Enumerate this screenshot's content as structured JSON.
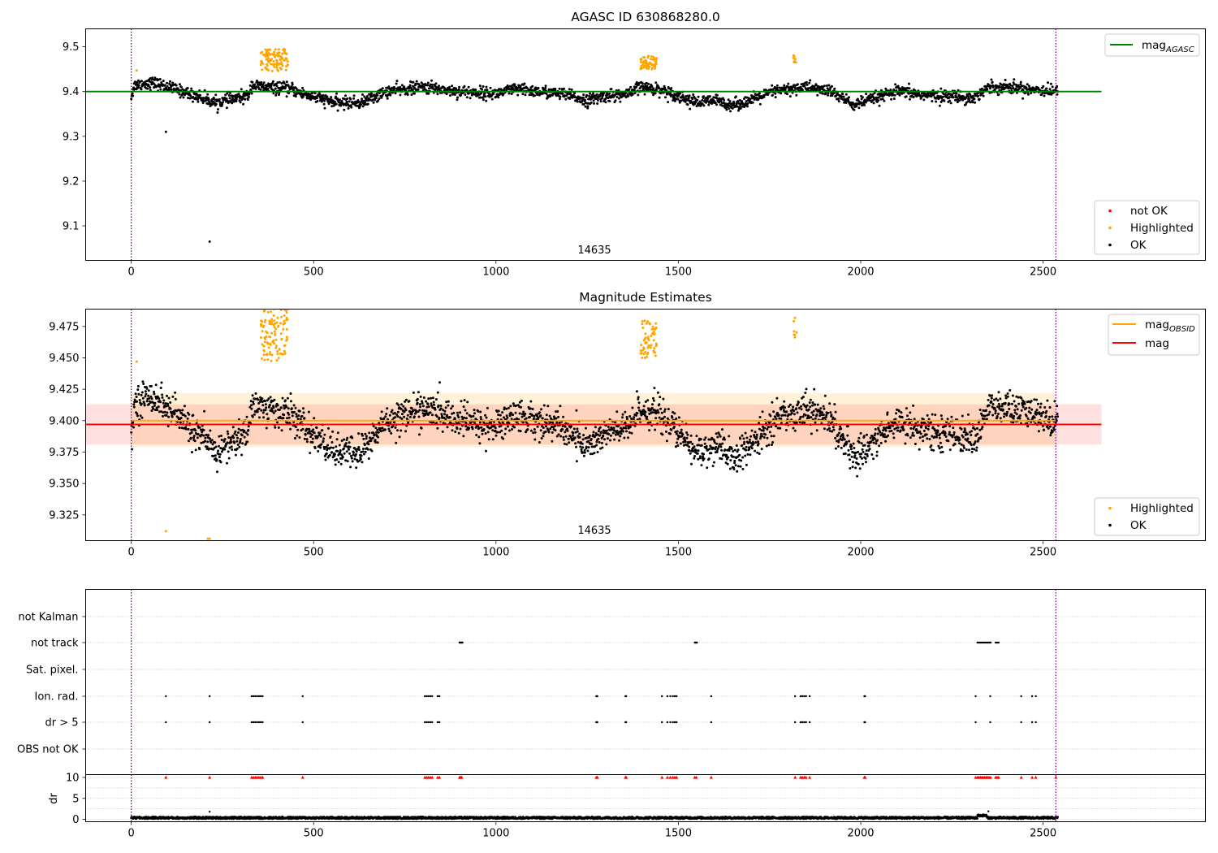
{
  "colors": {
    "ok": "#000000",
    "highlighted": "#ffa500",
    "not_ok": "#ff0000",
    "mag_agasc_line": "#008000",
    "mag_obsid_line": "#ffa500",
    "mag_line": "#ff0000",
    "obs_boundary": "#800080",
    "grid": "#b0b0b0"
  },
  "chart_data": [
    {
      "type": "scatter",
      "title": "AGASC ID 630868280.0",
      "xlabel": "",
      "ylabel": "",
      "xlim": [
        -125,
        2945
      ],
      "ylim": [
        9.023,
        9.54
      ],
      "x_ticks": [
        0,
        500,
        1000,
        1500,
        2000,
        2500
      ],
      "y_ticks": [
        9.1,
        9.2,
        9.3,
        9.4,
        9.5
      ],
      "y_tick_labels": [
        "9.1",
        "9.2",
        "9.3",
        "9.4",
        "9.5"
      ],
      "grid": false,
      "obsid_label": "14635",
      "obs_boundaries": [
        0,
        2535
      ],
      "lines": [
        {
          "name": "mag_AGASC",
          "legend_main": "mag",
          "legend_sub": "AGASC",
          "y": 9.4,
          "x": [
            -125,
            2660
          ],
          "color": "#008000"
        }
      ],
      "legend_lines_placement": "top-right",
      "legend_points_placement": "lower-right",
      "legend_points": [
        {
          "label": "not OK",
          "color": "#ff0000"
        },
        {
          "label": "Highlighted",
          "color": "#ffa500"
        },
        {
          "label": "OK",
          "color": "#000000"
        }
      ],
      "series": [
        {
          "name": "OK",
          "color": "#000000",
          "approx_points": 2500,
          "trend": [
            [
              0,
              9.39
            ],
            [
              10,
              9.415
            ],
            [
              60,
              9.42
            ],
            [
              100,
              9.41
            ],
            [
              180,
              9.39
            ],
            [
              230,
              9.375
            ],
            [
              320,
              9.39
            ],
            [
              330,
              9.415
            ],
            [
              360,
              9.41
            ],
            [
              440,
              9.405
            ],
            [
              470,
              9.395
            ],
            [
              560,
              9.375
            ],
            [
              630,
              9.375
            ],
            [
              700,
              9.4
            ],
            [
              800,
              9.41
            ],
            [
              900,
              9.4
            ],
            [
              1000,
              9.395
            ],
            [
              1050,
              9.405
            ],
            [
              1180,
              9.395
            ],
            [
              1250,
              9.38
            ],
            [
              1300,
              9.39
            ],
            [
              1370,
              9.395
            ],
            [
              1390,
              9.41
            ],
            [
              1450,
              9.405
            ],
            [
              1550,
              9.375
            ],
            [
              1600,
              9.38
            ],
            [
              1650,
              9.37
            ],
            [
              1700,
              9.38
            ],
            [
              1760,
              9.4
            ],
            [
              1850,
              9.41
            ],
            [
              1920,
              9.4
            ],
            [
              1980,
              9.37
            ],
            [
              2020,
              9.38
            ],
            [
              2100,
              9.4
            ],
            [
              2200,
              9.39
            ],
            [
              2250,
              9.39
            ],
            [
              2310,
              9.385
            ],
            [
              2350,
              9.41
            ],
            [
              2400,
              9.41
            ],
            [
              2540,
              9.4
            ]
          ],
          "scatter": 0.012,
          "outliers": [
            [
              95,
              9.31
            ],
            [
              215,
              9.065
            ]
          ]
        },
        {
          "name": "Highlighted",
          "color": "#ffa500",
          "clusters": [
            {
              "x": [
                355,
                430
              ],
              "y": [
                9.445,
                9.495
              ],
              "count": 110
            },
            {
              "x": [
                1395,
                1440
              ],
              "y": [
                9.45,
                9.48
              ],
              "count": 60
            },
            {
              "x": [
                1815,
                1825
              ],
              "y": [
                9.465,
                9.482
              ],
              "count": 7
            }
          ],
          "points": [
            [
              15,
              9.447
            ]
          ]
        }
      ]
    },
    {
      "type": "scatter",
      "title": "Magnitude Estimates",
      "xlabel": "",
      "ylabel": "",
      "xlim": [
        -125,
        2945
      ],
      "ylim": [
        9.3045,
        9.4888
      ],
      "x_ticks": [
        0,
        500,
        1000,
        1500,
        2000,
        2500
      ],
      "y_ticks": [
        9.325,
        9.35,
        9.375,
        9.4,
        9.425,
        9.45,
        9.475
      ],
      "y_tick_labels": [
        "9.325",
        "9.350",
        "9.375",
        "9.400",
        "9.425",
        "9.450",
        "9.475"
      ],
      "grid": false,
      "obsid_label": "14635",
      "obs_boundaries": [
        0,
        2535
      ],
      "lines": [
        {
          "name": "mag_OBSID",
          "legend_main": "mag",
          "legend_sub": "OBSID",
          "y": 9.4,
          "x": [
            0,
            2535
          ],
          "color": "#ffa500"
        },
        {
          "name": "mag",
          "legend_main": "mag",
          "legend_sub": "",
          "y": 9.397,
          "x": [
            -125,
            2660
          ],
          "color": "#ff0000"
        }
      ],
      "bands": [
        {
          "name": "mag_OBSID range",
          "y": [
            9.379,
            9.422
          ],
          "x": [
            0,
            2535
          ],
          "color": "#ffa500",
          "alpha": 0.15
        },
        {
          "name": "mag range",
          "y": [
            9.381,
            9.413
          ],
          "x": [
            -125,
            2660
          ],
          "color": "#ff0000",
          "alpha": 0.12
        }
      ],
      "legend_lines_placement": "top-right",
      "legend_points_placement": "lower-right",
      "legend_points": [
        {
          "label": "Highlighted",
          "color": "#ffa500"
        },
        {
          "label": "OK",
          "color": "#000000"
        }
      ],
      "series": [
        {
          "name": "OK",
          "color": "#000000",
          "approx_points": 2500,
          "trend": [
            [
              0,
              9.39
            ],
            [
              10,
              9.415
            ],
            [
              60,
              9.42
            ],
            [
              100,
              9.41
            ],
            [
              180,
              9.39
            ],
            [
              230,
              9.375
            ],
            [
              320,
              9.39
            ],
            [
              330,
              9.415
            ],
            [
              360,
              9.41
            ],
            [
              440,
              9.405
            ],
            [
              470,
              9.395
            ],
            [
              560,
              9.375
            ],
            [
              630,
              9.375
            ],
            [
              700,
              9.4
            ],
            [
              800,
              9.41
            ],
            [
              900,
              9.4
            ],
            [
              1000,
              9.395
            ],
            [
              1050,
              9.405
            ],
            [
              1180,
              9.395
            ],
            [
              1250,
              9.38
            ],
            [
              1300,
              9.39
            ],
            [
              1370,
              9.395
            ],
            [
              1390,
              9.41
            ],
            [
              1450,
              9.405
            ],
            [
              1550,
              9.375
            ],
            [
              1600,
              9.38
            ],
            [
              1650,
              9.37
            ],
            [
              1700,
              9.38
            ],
            [
              1760,
              9.4
            ],
            [
              1850,
              9.41
            ],
            [
              1920,
              9.4
            ],
            [
              1980,
              9.37
            ],
            [
              2020,
              9.38
            ],
            [
              2100,
              9.4
            ],
            [
              2200,
              9.39
            ],
            [
              2250,
              9.39
            ],
            [
              2310,
              9.385
            ],
            [
              2350,
              9.41
            ],
            [
              2400,
              9.41
            ],
            [
              2540,
              9.4
            ]
          ],
          "scatter": 0.012
        },
        {
          "name": "Highlighted",
          "color": "#ffa500",
          "clusters": [
            {
              "x": [
                355,
                430
              ],
              "y": [
                9.447,
                9.49
              ],
              "count": 110
            },
            {
              "x": [
                1395,
                1440
              ],
              "y": [
                9.45,
                9.48
              ],
              "count": 60
            },
            {
              "x": [
                1815,
                1825
              ],
              "y": [
                9.465,
                9.482
              ],
              "count": 7
            }
          ],
          "points": [
            [
              15,
              9.447
            ],
            [
              95,
              9.312
            ],
            [
              210,
              9.306
            ],
            [
              215,
              9.306
            ]
          ]
        }
      ]
    },
    {
      "type": "scatter",
      "title": "",
      "xlabel": "",
      "ylabel": "",
      "xlim": [
        -125,
        2945
      ],
      "categories": [
        "not Kalman",
        "not track",
        "Sat. pixel.",
        "Ion. rad.",
        "dr > 5",
        "OBS not OK"
      ],
      "grid": "horizontal dotted",
      "obs_boundaries": [
        0,
        2535
      ],
      "flags": [
        {
          "category": "not Kalman",
          "x": []
        },
        {
          "category": "not track",
          "x": [
            900,
            902,
            904,
            906,
            908,
            1545,
            1547,
            1549,
            1551,
            2320,
            2324,
            2328,
            2332,
            2336,
            2340,
            2344,
            2348,
            2352,
            2356,
            2370,
            2374,
            2378
          ]
        },
        {
          "category": "Sat. pixel.",
          "x": []
        },
        {
          "category": "Ion. rad.",
          "x": [
            95,
            215,
            330,
            335,
            340,
            345,
            350,
            355,
            360,
            470,
            805,
            810,
            815,
            820,
            825,
            840,
            845,
            1275,
            1278,
            1355,
            1357,
            1455,
            1470,
            1478,
            1485,
            1490,
            1495,
            1590,
            1820,
            1835,
            1840,
            1845,
            1850,
            1860,
            2010,
            2012,
            2315,
            2355,
            2440,
            2470,
            2480
          ]
        },
        {
          "category": "dr > 5",
          "x": [
            95,
            215,
            330,
            335,
            340,
            345,
            350,
            355,
            360,
            470,
            805,
            810,
            815,
            820,
            825,
            840,
            845,
            1275,
            1278,
            1355,
            1357,
            1455,
            1470,
            1478,
            1485,
            1490,
            1495,
            1590,
            1820,
            1835,
            1840,
            1845,
            1850,
            1860,
            2010,
            2012,
            2315,
            2355,
            2440,
            2470,
            2480
          ]
        },
        {
          "category": "OBS not OK",
          "x": []
        }
      ]
    },
    {
      "type": "scatter",
      "title": "",
      "xlabel": "",
      "ylabel": "dr",
      "xlim": [
        -125,
        2945
      ],
      "ylim": [
        -0.5,
        10.5
      ],
      "x_ticks": [
        0,
        500,
        1000,
        1500,
        2000,
        2500
      ],
      "y_ticks": [
        0,
        5,
        10
      ],
      "y_tick_labels": [
        "0",
        "5",
        "10"
      ],
      "grid": "horizontal dotted",
      "obs_boundaries": [
        0,
        2535
      ],
      "series": [
        {
          "name": "dr",
          "color": "#000000",
          "approx_points": 2500,
          "typical": [
            0.1,
            0.6
          ],
          "segments": [
            [
              0,
              2320,
              0.35
            ],
            [
              2320,
              2345,
              0.9
            ],
            [
              2350,
              2540,
              0.35
            ]
          ],
          "outliers": [
            [
              215,
              1.8
            ],
            [
              2350,
              1.9
            ]
          ]
        },
        {
          "name": "dr clipped at 10",
          "color": "#ff0000",
          "marker": "triangle",
          "y": 10,
          "x": [
            95,
            215,
            330,
            335,
            340,
            345,
            350,
            355,
            360,
            470,
            805,
            810,
            815,
            820,
            825,
            840,
            845,
            900,
            903,
            906,
            1275,
            1278,
            1355,
            1357,
            1455,
            1470,
            1478,
            1485,
            1490,
            1495,
            1545,
            1549,
            1590,
            1820,
            1835,
            1840,
            1845,
            1850,
            1860,
            2010,
            2012,
            2315,
            2320,
            2324,
            2328,
            2332,
            2336,
            2340,
            2344,
            2348,
            2352,
            2356,
            2370,
            2374,
            2378,
            2440,
            2470,
            2480,
            2535
          ]
        }
      ]
    }
  ]
}
